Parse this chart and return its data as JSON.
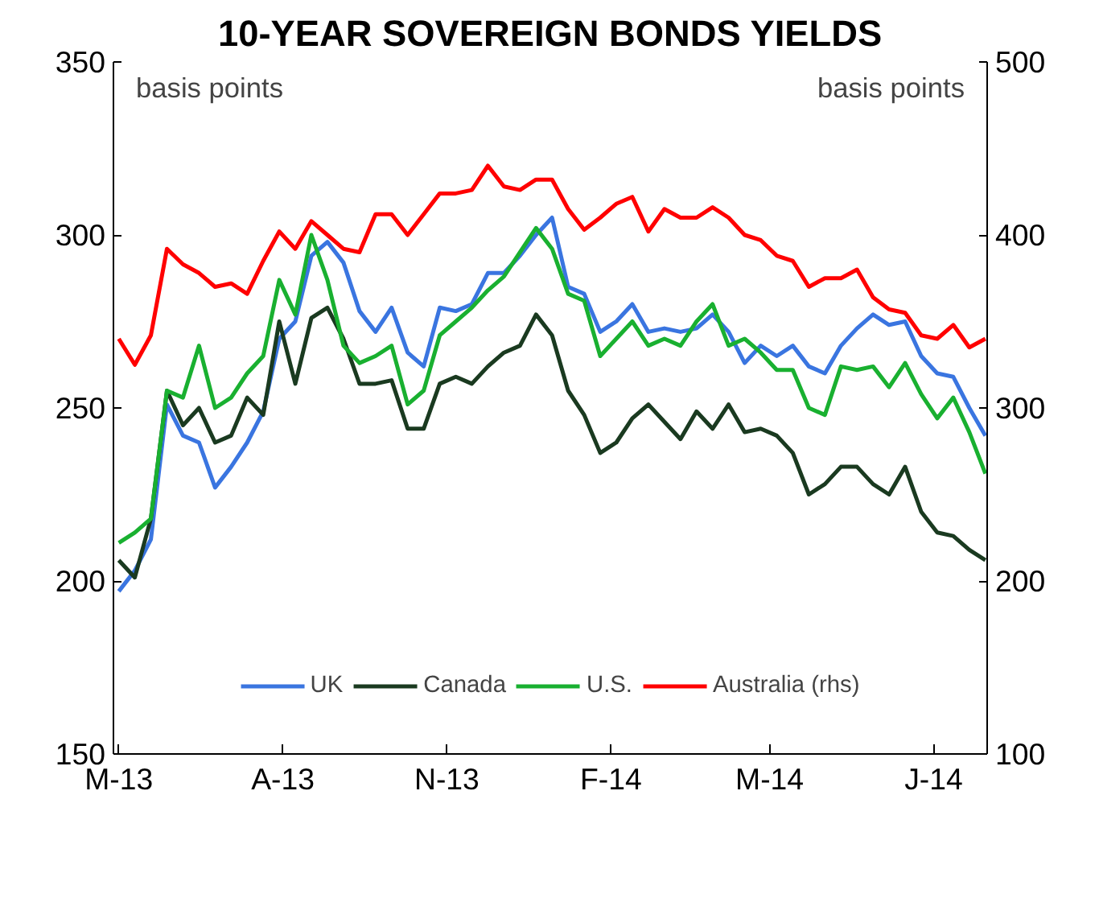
{
  "chart_data": {
    "type": "line",
    "title": "10-YEAR SOVEREIGN BONDS YIELDS",
    "ylabel": "basis points",
    "y2label": "basis points",
    "x": [
      "2013-05-01",
      "2013-05-10",
      "2013-05-19",
      "2013-05-28",
      "2013-06-06",
      "2013-06-15",
      "2013-06-24",
      "2013-07-03",
      "2013-07-12",
      "2013-07-21",
      "2013-07-30",
      "2013-08-08",
      "2013-08-17",
      "2013-08-26",
      "2013-09-04",
      "2013-09-13",
      "2013-09-22",
      "2013-10-01",
      "2013-10-10",
      "2013-10-19",
      "2013-10-28",
      "2013-11-06",
      "2013-11-15",
      "2013-11-24",
      "2013-12-03",
      "2013-12-12",
      "2013-12-21",
      "2013-12-30",
      "2014-01-08",
      "2014-01-17",
      "2014-01-26",
      "2014-02-04",
      "2014-02-13",
      "2014-02-22",
      "2014-03-03",
      "2014-03-12",
      "2014-03-21",
      "2014-03-30",
      "2014-04-08",
      "2014-04-17",
      "2014-04-26",
      "2014-05-05",
      "2014-05-14",
      "2014-05-23",
      "2014-06-01",
      "2014-06-10",
      "2014-06-19",
      "2014-06-28",
      "2014-07-07",
      "2014-07-16",
      "2014-07-25",
      "2014-08-03",
      "2014-08-12",
      "2014-08-21",
      "2014-08-30"
    ],
    "series": [
      {
        "name": "UK",
        "color": "#3a75e0",
        "values": [
          197,
          203,
          212,
          251,
          242,
          240,
          227,
          233,
          240,
          249,
          270,
          275,
          294,
          298,
          292,
          278,
          272,
          279,
          266,
          262,
          279,
          278,
          280,
          289,
          289,
          294,
          300,
          305,
          285,
          283,
          272,
          275,
          280,
          272,
          273,
          272,
          273,
          277,
          272,
          263,
          268,
          265,
          268,
          262,
          260,
          268,
          273,
          277,
          274,
          275,
          265,
          260,
          259,
          250,
          242
        ]
      },
      {
        "name": "Canada",
        "color": "#1a3a20",
        "values": [
          206,
          201,
          218,
          255,
          245,
          250,
          240,
          242,
          253,
          248,
          275,
          257,
          276,
          279,
          270,
          257,
          257,
          258,
          244,
          244,
          257,
          259,
          257,
          262,
          266,
          268,
          277,
          271,
          255,
          248,
          237,
          240,
          247,
          251,
          246,
          241,
          249,
          244,
          251,
          243,
          244,
          242,
          237,
          225,
          228,
          233,
          233,
          228,
          225,
          233,
          220,
          214,
          213,
          209,
          206
        ]
      },
      {
        "name": "U.S.",
        "color": "#19b030",
        "values": [
          211,
          214,
          218,
          255,
          253,
          268,
          250,
          253,
          260,
          265,
          287,
          277,
          300,
          287,
          268,
          263,
          265,
          268,
          251,
          255,
          271,
          275,
          279,
          284,
          288,
          295,
          302,
          296,
          283,
          281,
          265,
          270,
          275,
          268,
          270,
          268,
          275,
          280,
          268,
          270,
          266,
          261,
          261,
          250,
          248,
          262,
          261,
          262,
          256,
          263,
          254,
          247,
          253,
          243,
          231
        ]
      },
      {
        "name": "Australia (rhs)",
        "color": "#ff0000",
        "axis": "y2",
        "values": [
          340,
          325,
          342,
          392,
          383,
          378,
          370,
          372,
          366,
          385,
          402,
          392,
          408,
          400,
          392,
          390,
          412,
          412,
          400,
          412,
          424,
          424,
          426,
          440,
          428,
          426,
          432,
          432,
          415,
          403,
          410,
          418,
          422,
          402,
          415,
          410,
          410,
          416,
          410,
          400,
          397,
          388,
          385,
          370,
          375,
          375,
          380,
          364,
          357,
          355,
          342,
          340,
          348,
          335,
          340
        ]
      }
    ],
    "xlim": [
      "2013-04-28",
      "2014-08-31"
    ],
    "xticks": [
      {
        "value": "2013-05-01",
        "label": "M-13"
      },
      {
        "value": "2013-08-01",
        "label": "A-13"
      },
      {
        "value": "2013-11-01",
        "label": "N-13"
      },
      {
        "value": "2014-02-01",
        "label": "F-14"
      },
      {
        "value": "2014-05-01",
        "label": "M-14"
      },
      {
        "value": "2014-08-01",
        "label": "J-14"
      }
    ],
    "ylim": [
      150,
      350
    ],
    "yticks": [
      150,
      200,
      250,
      300,
      350
    ],
    "y2lim": [
      100,
      500
    ],
    "y2ticks": [
      100,
      200,
      300,
      400,
      500
    ],
    "legend": "bottom",
    "grid": false,
    "line_style": "solid",
    "marker": "none"
  }
}
